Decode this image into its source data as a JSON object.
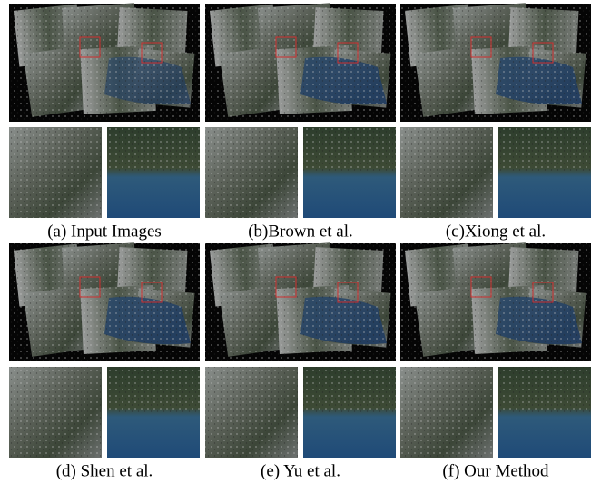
{
  "panels": [
    {
      "caption": "(a) Input Images"
    },
    {
      "caption": "(b)Brown et al."
    },
    {
      "caption": "(c)Xiong et al."
    },
    {
      "caption": "(d) Shen et al."
    },
    {
      "caption": "(e) Yu et al."
    },
    {
      "caption": "(f) Our Method"
    }
  ]
}
